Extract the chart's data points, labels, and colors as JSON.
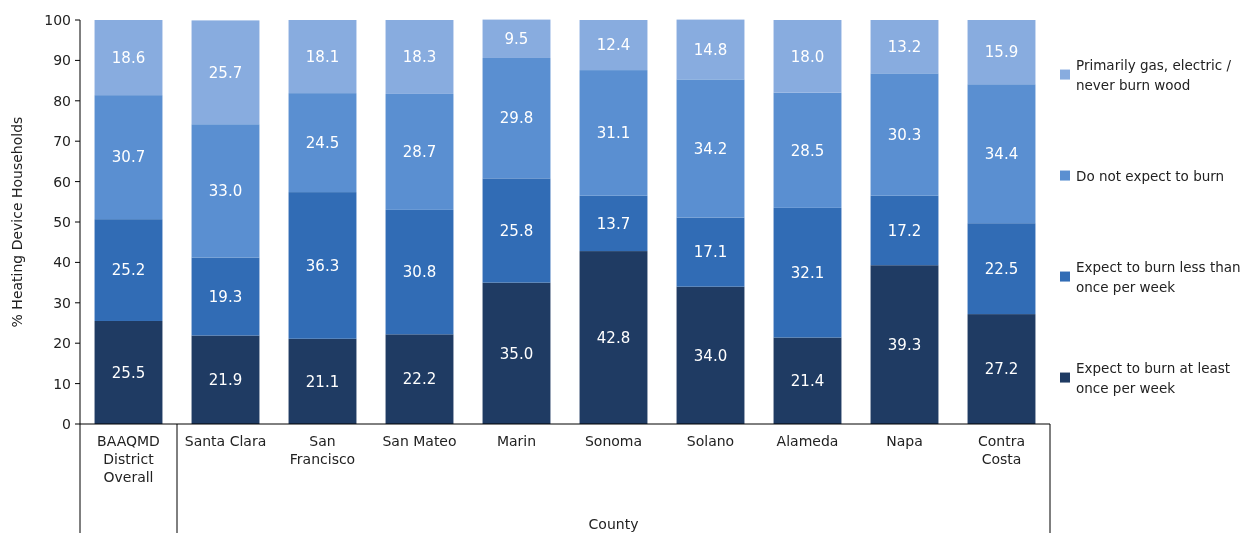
{
  "chart_data": {
    "type": "bar",
    "stacked": true,
    "ylabel": "% Heating Device Households",
    "xlabel": "County",
    "categories": [
      "BAAQMD District Overall",
      "Santa Clara",
      "San Francisco",
      "San Mateo",
      "Marin",
      "Sonoma",
      "Solano",
      "Alameda",
      "Napa",
      "Contra Costa"
    ],
    "series": [
      {
        "name": "Expect to burn at least once per week",
        "color": "#1f3b63",
        "values": [
          25.5,
          21.9,
          21.1,
          22.2,
          35.0,
          42.8,
          34.0,
          21.4,
          39.3,
          27.2
        ],
        "value_labels": [
          "25.5",
          "21.9",
          "21.1",
          "22.2",
          "35.0",
          "42.8",
          "34.0",
          "21.4",
          "39.3",
          "27.2"
        ]
      },
      {
        "name": "Expect to burn less than once per week",
        "color": "#316cb5",
        "values": [
          25.2,
          19.3,
          36.3,
          30.8,
          25.8,
          13.7,
          17.1,
          32.1,
          17.2,
          22.5
        ],
        "value_labels": [
          "25.2",
          "19.3",
          "36.3",
          "30.8",
          "25.8",
          "13.7",
          "17.1",
          "32.1",
          "17.2",
          "22.5"
        ]
      },
      {
        "name": "Do not expect to burn",
        "color": "#5a8fd1",
        "values": [
          30.7,
          33.0,
          24.5,
          28.7,
          29.8,
          31.1,
          34.2,
          28.5,
          30.3,
          34.4
        ],
        "value_labels": [
          "30.7",
          "33.0",
          "24.5",
          "28.7",
          "29.8",
          "31.1",
          "34.2",
          "28.5",
          "30.3",
          "34.4"
        ]
      },
      {
        "name": "Primarily gas, electric / never burn wood",
        "color": "#88acdf",
        "values": [
          18.6,
          25.7,
          18.1,
          18.3,
          9.5,
          12.4,
          14.8,
          18.0,
          13.2,
          15.9
        ],
        "value_labels": [
          "18.6",
          "25.7",
          "18.1",
          "18.3",
          "9.5",
          "12.4",
          "14.8",
          "18.0",
          "13.2",
          "15.9"
        ]
      }
    ],
    "ylim": [
      0,
      100
    ],
    "yticks": [
      0,
      10,
      20,
      30,
      40,
      50,
      60,
      70,
      80,
      90,
      100
    ],
    "legend": "right",
    "grid": false
  }
}
